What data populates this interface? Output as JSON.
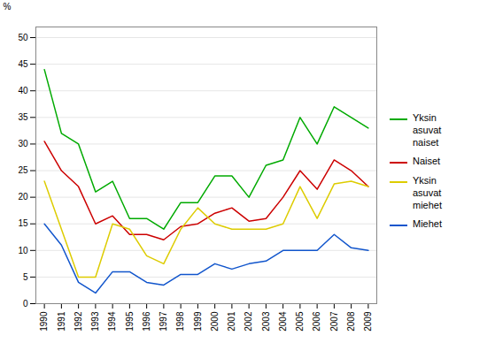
{
  "chart_data": {
    "type": "line",
    "ylabel": "%",
    "x": [
      1990,
      1991,
      1992,
      1993,
      1994,
      1995,
      1996,
      1997,
      1998,
      1999,
      2000,
      2001,
      2002,
      2003,
      2004,
      2005,
      2006,
      2007,
      2008,
      2009
    ],
    "xlim": [
      1989.5,
      2009.5
    ],
    "xticks": [
      1990,
      1991,
      1992,
      1993,
      1994,
      1995,
      1996,
      1997,
      1998,
      1999,
      2000,
      2001,
      2002,
      2003,
      2004,
      2005,
      2006,
      2007,
      2008,
      2009
    ],
    "ylim": [
      0,
      52
    ],
    "yticks": [
      0,
      5,
      10,
      15,
      20,
      25,
      30,
      35,
      40,
      45,
      50
    ],
    "grid": true,
    "legend": "right",
    "series": [
      {
        "name": "Yksin\nasuvat\nnaiset",
        "color": "#00aa00",
        "values": [
          44,
          32,
          30,
          21,
          23,
          16,
          16,
          14,
          19,
          19,
          24,
          24,
          20,
          26,
          27,
          35,
          30,
          37,
          35,
          33
        ]
      },
      {
        "name": "Naiset",
        "color": "#cc0000",
        "values": [
          30.5,
          25,
          22,
          15,
          16.5,
          13,
          13,
          12,
          14.5,
          15,
          17,
          18,
          15.5,
          16,
          20,
          25,
          21.5,
          27,
          25,
          22
        ]
      },
      {
        "name": "Yksin\nasuvat\nmiehet",
        "color": "#ddcc00",
        "values": [
          23,
          14,
          5,
          5,
          15,
          14,
          9,
          7.5,
          14,
          18,
          15,
          14,
          14,
          14,
          15,
          22,
          16,
          22.5,
          23,
          22
        ]
      },
      {
        "name": "Miehet",
        "color": "#1155cc",
        "values": [
          15,
          11,
          4,
          2,
          6,
          6,
          4,
          3.5,
          5.5,
          5.5,
          7.5,
          6.5,
          7.5,
          8,
          10,
          10,
          10,
          13,
          10.5,
          10
        ]
      }
    ]
  }
}
